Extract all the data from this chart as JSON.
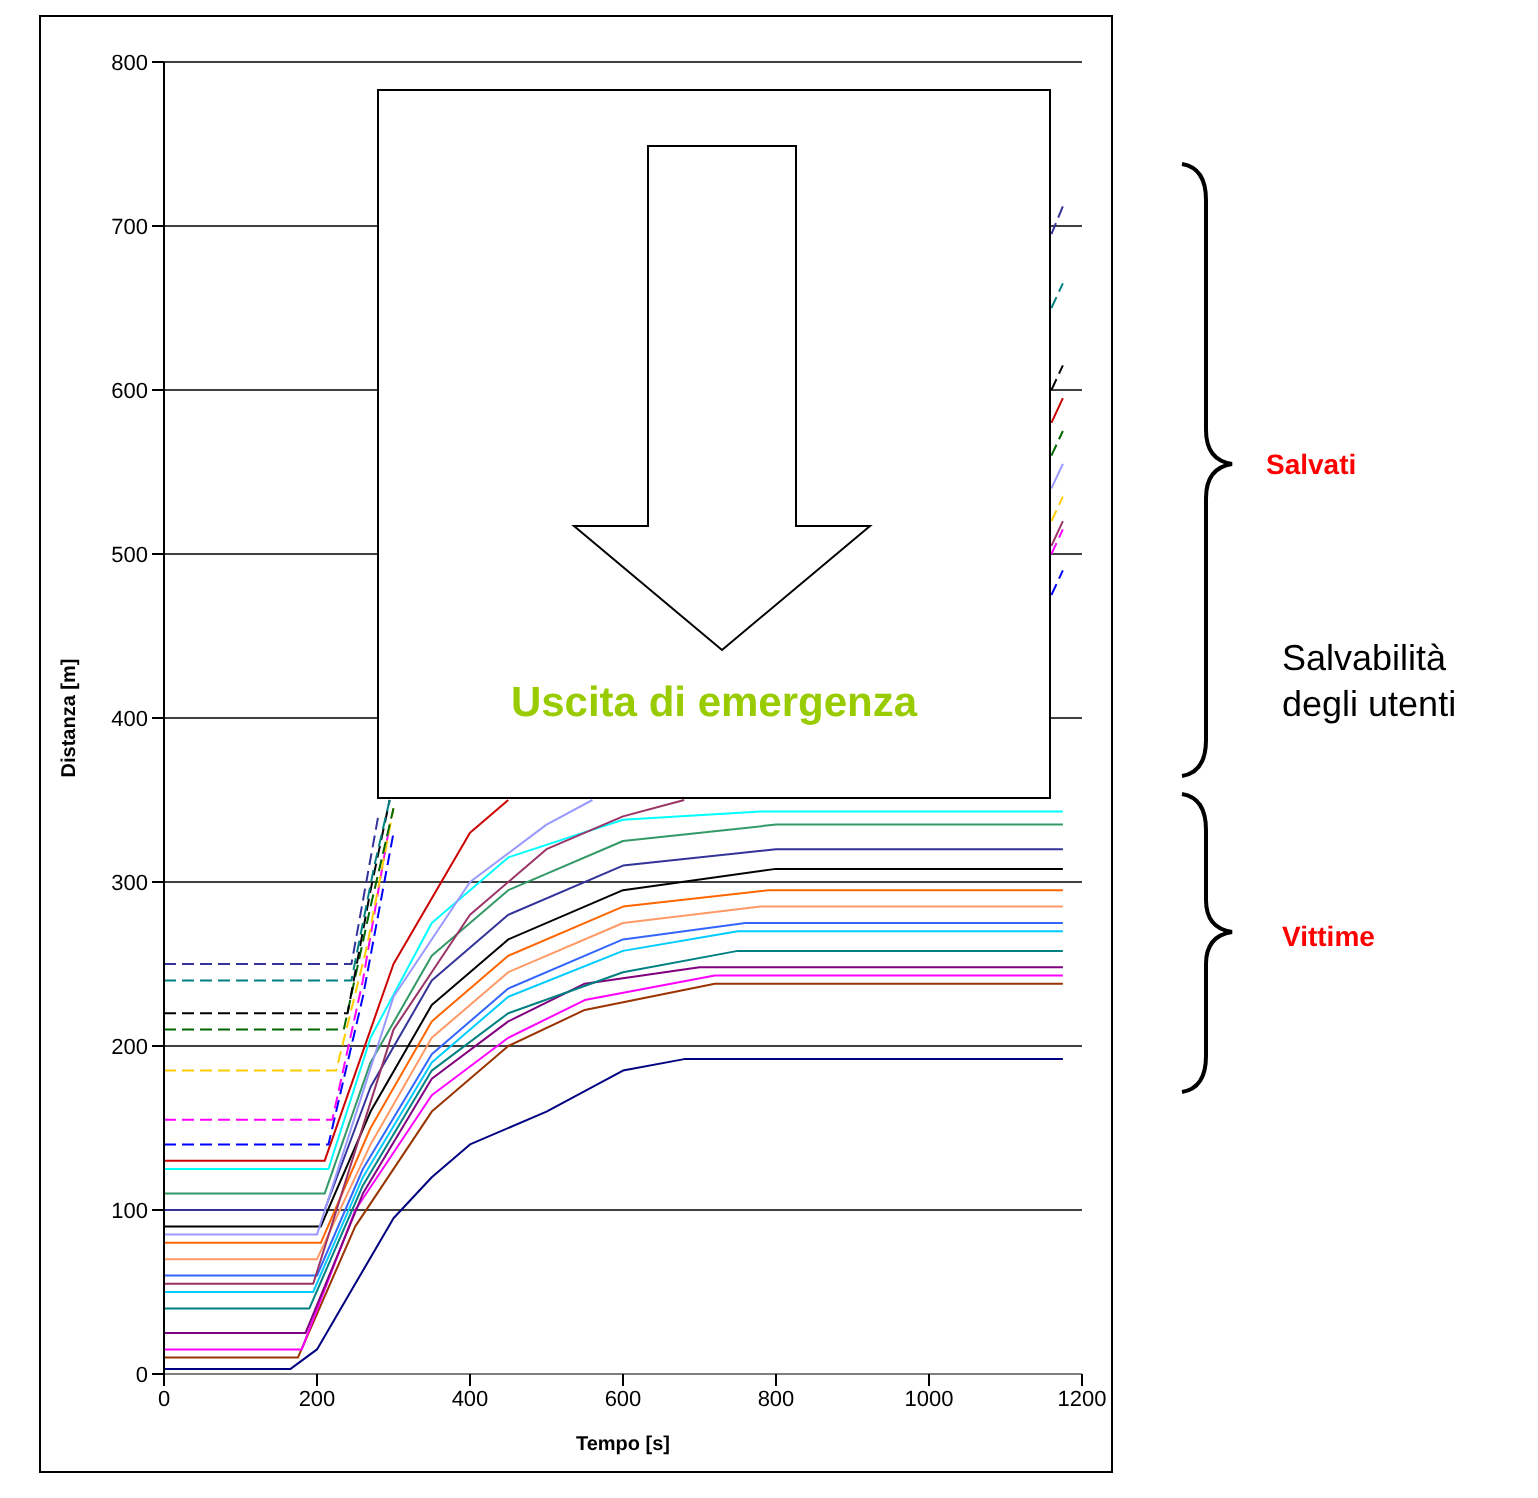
{
  "chart_data": {
    "type": "line",
    "xlabel": "Tempo [s]",
    "ylabel": "Distanza [m]",
    "xlim": [
      0,
      1200
    ],
    "xticks": [
      0,
      200,
      400,
      600,
      800,
      1000,
      1200
    ],
    "ylim": [
      0,
      800
    ],
    "yticks": [
      0,
      100,
      200,
      300,
      400,
      500,
      600,
      700,
      800
    ],
    "grid": "y",
    "marker": "none",
    "line_style": "solid",
    "annotations": [
      "Uscita di emergenza",
      "Salvati",
      "Salvabilità degli utenti",
      "Vittime"
    ],
    "series": [
      {
        "color": "#000080",
        "x": [
          0,
          165,
          200,
          250,
          300,
          350,
          400,
          500,
          600,
          680,
          1175
        ],
        "values": [
          3,
          3,
          15,
          55,
          95,
          120,
          140,
          160,
          185,
          192,
          192
        ]
      },
      {
        "color": "#993300",
        "x": [
          0,
          175,
          250,
          350,
          450,
          550,
          720,
          1175
        ],
        "values": [
          10,
          10,
          90,
          160,
          200,
          222,
          238,
          238
        ]
      },
      {
        "color": "#ff00ff",
        "x": [
          0,
          180,
          250,
          350,
          450,
          550,
          720,
          1175
        ],
        "values": [
          15,
          15,
          100,
          170,
          205,
          228,
          243,
          243
        ]
      },
      {
        "color": "#800080",
        "x": [
          0,
          185,
          260,
          350,
          450,
          550,
          700,
          1175
        ],
        "values": [
          25,
          25,
          110,
          180,
          215,
          238,
          248,
          248
        ]
      },
      {
        "color": "#008080",
        "x": [
          0,
          190,
          260,
          350,
          450,
          600,
          750,
          1175
        ],
        "values": [
          40,
          40,
          115,
          185,
          220,
          245,
          258,
          258
        ]
      },
      {
        "color": "#00ccff",
        "x": [
          0,
          195,
          260,
          350,
          450,
          600,
          750,
          1175
        ],
        "values": [
          50,
          50,
          120,
          190,
          230,
          258,
          270,
          270
        ]
      },
      {
        "color": "#3366ff",
        "x": [
          0,
          200,
          260,
          350,
          450,
          600,
          760,
          1175
        ],
        "values": [
          60,
          60,
          125,
          195,
          235,
          265,
          275,
          275
        ]
      },
      {
        "color": "#ff9966",
        "x": [
          0,
          200,
          270,
          350,
          450,
          600,
          780,
          1175
        ],
        "values": [
          70,
          70,
          140,
          205,
          245,
          275,
          285,
          285
        ]
      },
      {
        "color": "#ff6600",
        "x": [
          0,
          205,
          270,
          350,
          450,
          600,
          790,
          1175
        ],
        "values": [
          80,
          80,
          150,
          215,
          255,
          285,
          295,
          295
        ]
      },
      {
        "color": "#000000",
        "x": [
          0,
          205,
          270,
          350,
          450,
          600,
          800,
          1175
        ],
        "values": [
          90,
          90,
          160,
          225,
          265,
          295,
          308,
          308
        ]
      },
      {
        "color": "#333399",
        "x": [
          0,
          210,
          270,
          350,
          450,
          600,
          800,
          1175
        ],
        "values": [
          100,
          100,
          175,
          240,
          280,
          310,
          320,
          320
        ]
      },
      {
        "color": "#339966",
        "x": [
          0,
          210,
          270,
          350,
          450,
          600,
          800,
          1175
        ],
        "values": [
          110,
          110,
          190,
          255,
          295,
          325,
          335,
          335
        ]
      },
      {
        "color": "#00ffff",
        "x": [
          0,
          215,
          270,
          350,
          450,
          600,
          780,
          1175
        ],
        "values": [
          125,
          125,
          205,
          275,
          315,
          338,
          343,
          343
        ]
      },
      {
        "color": "#cc0000",
        "x": [
          0,
          210,
          300,
          400,
          450,
          1000,
          1160,
          1175
        ],
        "values": [
          130,
          130,
          250,
          330,
          350,
          null,
          580,
          595
        ]
      },
      {
        "color": "#9999ff",
        "x": [
          0,
          200,
          300,
          400,
          500,
          560,
          1000,
          1160,
          1175
        ],
        "values": [
          85,
          85,
          230,
          300,
          335,
          350,
          null,
          540,
          555
        ]
      },
      {
        "color": "#993366",
        "x": [
          0,
          195,
          300,
          400,
          500,
          600,
          680,
          1000,
          1160,
          1175
        ],
        "values": [
          55,
          55,
          210,
          280,
          320,
          340,
          350,
          null,
          505,
          520
        ]
      },
      {
        "color": "#0000ff",
        "line_style": "dashed",
        "x": [
          0,
          215,
          260,
          300,
          1000,
          1160,
          1175
        ],
        "values": [
          140,
          140,
          230,
          330,
          null,
          475,
          490
        ]
      },
      {
        "color": "#ff00ff",
        "line_style": "dashed",
        "x": [
          0,
          220,
          260,
          295,
          1000,
          1160,
          1175
        ],
        "values": [
          155,
          155,
          240,
          335,
          null,
          500,
          515
        ]
      },
      {
        "color": "#ffcc00",
        "line_style": "dashed",
        "x": [
          0,
          225,
          265,
          300,
          1000,
          1160,
          1175
        ],
        "values": [
          185,
          185,
          260,
          345,
          null,
          520,
          535
        ]
      },
      {
        "color": "#006600",
        "line_style": "dashed",
        "x": [
          0,
          235,
          270,
          300,
          1000,
          1160,
          1175
        ],
        "values": [
          210,
          210,
          285,
          345,
          null,
          560,
          575
        ]
      },
      {
        "color": "#000000",
        "line_style": "dashed",
        "x": [
          0,
          240,
          270,
          295,
          1000,
          1160,
          1175
        ],
        "values": [
          220,
          220,
          295,
          350,
          null,
          600,
          615
        ]
      },
      {
        "color": "#008080",
        "line_style": "dashed",
        "x": [
          0,
          245,
          275,
          295,
          1000,
          1160,
          1175
        ],
        "values": [
          240,
          240,
          310,
          350,
          null,
          650,
          665
        ]
      },
      {
        "color": "#333399",
        "line_style": "dashed",
        "x": [
          0,
          245,
          280,
          1000,
          1160,
          1175
        ],
        "values": [
          250,
          250,
          340,
          null,
          695,
          712
        ]
      }
    ]
  }
}
